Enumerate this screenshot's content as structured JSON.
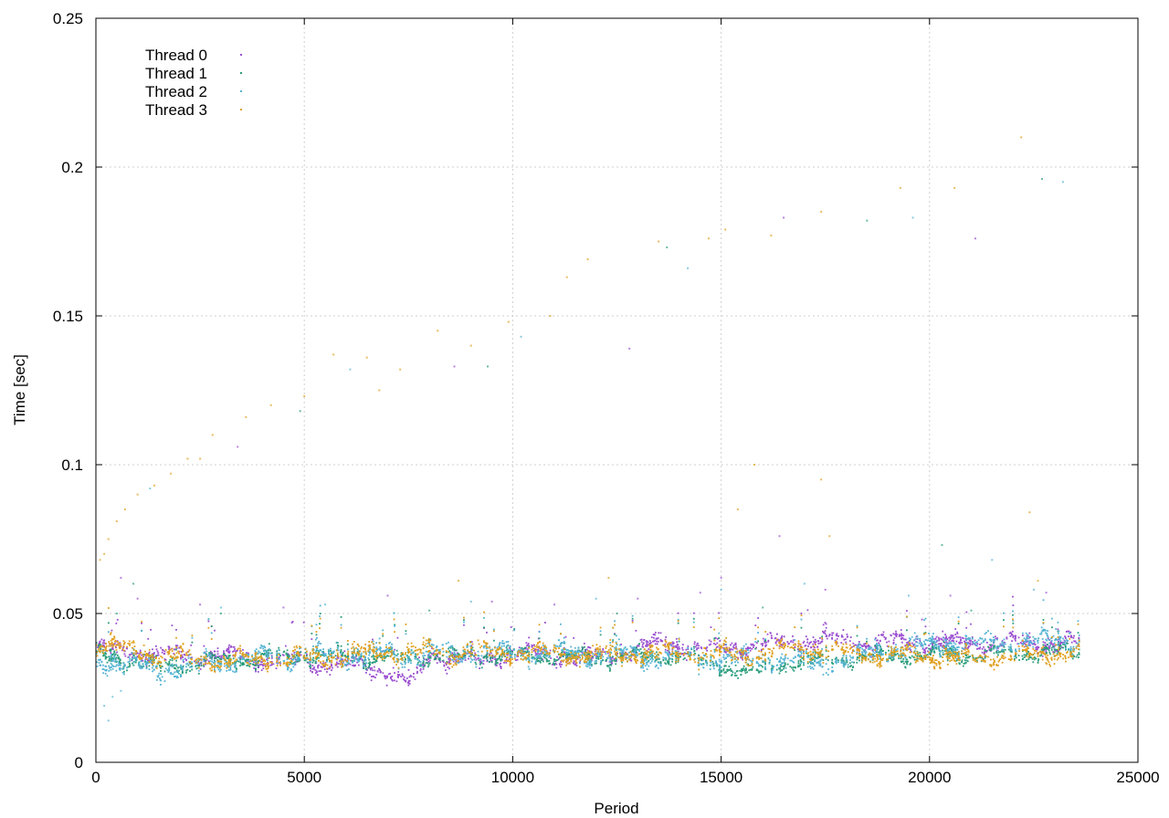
{
  "chart_data": {
    "type": "scatter",
    "xlabel": "Period",
    "ylabel": "Time [sec]",
    "xlim": [
      0,
      25000
    ],
    "ylim": [
      0,
      0.25
    ],
    "x_ticks": [
      0,
      5000,
      10000,
      15000,
      20000,
      25000
    ],
    "x_tick_labels": [
      "0",
      "5000",
      "10000",
      "15000",
      "20000",
      "25000"
    ],
    "y_ticks": [
      0,
      0.05,
      0.1,
      0.15,
      0.2,
      0.25
    ],
    "y_tick_labels": [
      "0",
      "0.05",
      "0.1",
      "0.15",
      "0.2",
      "0.25"
    ],
    "grid": true,
    "legend_position": "top-left",
    "x_range_of_data": [
      0,
      23600
    ],
    "series": [
      {
        "name": "Thread 0",
        "color": "#9b4fd0",
        "baseline": [
          [
            0,
            0.038
          ],
          [
            2000,
            0.036
          ],
          [
            4000,
            0.035
          ],
          [
            6000,
            0.033
          ],
          [
            6900,
            0.031
          ],
          [
            7300,
            0.028
          ],
          [
            7600,
            0.026
          ],
          [
            8000,
            0.036
          ],
          [
            9200,
            0.034
          ],
          [
            10000,
            0.037
          ],
          [
            12000,
            0.035
          ],
          [
            13500,
            0.04
          ],
          [
            15000,
            0.038
          ],
          [
            17000,
            0.041
          ],
          [
            20000,
            0.04
          ],
          [
            23600,
            0.04
          ]
        ],
        "spread": 0.0035,
        "outliers": [
          [
            1000,
            0.055
          ],
          [
            2500,
            0.053
          ],
          [
            4500,
            0.052
          ],
          [
            7000,
            0.056
          ],
          [
            9500,
            0.054
          ],
          [
            11000,
            0.053
          ],
          [
            13000,
            0.055
          ],
          [
            14500,
            0.057
          ],
          [
            15000,
            0.062
          ],
          [
            17500,
            0.058
          ],
          [
            20500,
            0.056
          ],
          [
            22800,
            0.057
          ]
        ]
      },
      {
        "name": "Thread 1",
        "color": "#2a9d7c",
        "baseline": [
          [
            0,
            0.037
          ],
          [
            1500,
            0.032
          ],
          [
            3000,
            0.034
          ],
          [
            5000,
            0.036
          ],
          [
            7000,
            0.035
          ],
          [
            10000,
            0.036
          ],
          [
            12000,
            0.035
          ],
          [
            14000,
            0.036
          ],
          [
            15800,
            0.03
          ],
          [
            16500,
            0.033
          ],
          [
            18000,
            0.035
          ],
          [
            20000,
            0.036
          ],
          [
            23600,
            0.037
          ]
        ],
        "spread": 0.003,
        "outliers": [
          [
            500,
            0.05
          ],
          [
            3000,
            0.05
          ],
          [
            8000,
            0.051
          ],
          [
            12500,
            0.05
          ],
          [
            16000,
            0.052
          ],
          [
            21000,
            0.051
          ]
        ]
      },
      {
        "name": "Thread 2",
        "color": "#56b4d4",
        "baseline": [
          [
            0,
            0.035
          ],
          [
            1500,
            0.031
          ],
          [
            3000,
            0.034
          ],
          [
            5000,
            0.036
          ],
          [
            7000,
            0.036
          ],
          [
            10000,
            0.037
          ],
          [
            13000,
            0.036
          ],
          [
            15000,
            0.035
          ],
          [
            16500,
            0.034
          ],
          [
            17500,
            0.033
          ],
          [
            19000,
            0.038
          ],
          [
            21000,
            0.04
          ],
          [
            23600,
            0.041
          ]
        ],
        "spread": 0.004,
        "outliers": [
          [
            200,
            0.019
          ],
          [
            300,
            0.014
          ],
          [
            400,
            0.022
          ],
          [
            600,
            0.024
          ],
          [
            3000,
            0.052
          ],
          [
            5500,
            0.053
          ],
          [
            9000,
            0.054
          ],
          [
            12000,
            0.055
          ],
          [
            15000,
            0.058
          ],
          [
            17000,
            0.06
          ],
          [
            19500,
            0.056
          ],
          [
            22500,
            0.058
          ]
        ]
      },
      {
        "name": "Thread 3",
        "color": "#e0a020",
        "baseline": [
          [
            0,
            0.04
          ],
          [
            1500,
            0.036
          ],
          [
            3000,
            0.034
          ],
          [
            5000,
            0.035
          ],
          [
            7000,
            0.037
          ],
          [
            10000,
            0.037
          ],
          [
            12000,
            0.036
          ],
          [
            14000,
            0.037
          ],
          [
            15500,
            0.036
          ],
          [
            17000,
            0.038
          ],
          [
            19000,
            0.036
          ],
          [
            21000,
            0.035
          ],
          [
            23600,
            0.037
          ]
        ],
        "spread": 0.0035,
        "outliers": [
          [
            100,
            0.068
          ],
          [
            200,
            0.07
          ],
          [
            300,
            0.075
          ],
          [
            500,
            0.081
          ],
          [
            700,
            0.085
          ],
          [
            1000,
            0.09
          ],
          [
            1400,
            0.093
          ],
          [
            1800,
            0.097
          ],
          [
            2200,
            0.102
          ],
          [
            2800,
            0.11
          ],
          [
            3600,
            0.116
          ],
          [
            4200,
            0.12
          ],
          [
            5000,
            0.123
          ],
          [
            5700,
            0.137
          ],
          [
            6500,
            0.136
          ],
          [
            7300,
            0.132
          ],
          [
            8200,
            0.145
          ],
          [
            9000,
            0.14
          ],
          [
            9900,
            0.148
          ],
          [
            10900,
            0.15
          ],
          [
            11800,
            0.169
          ],
          [
            13500,
            0.175
          ],
          [
            14700,
            0.176
          ],
          [
            16200,
            0.177
          ],
          [
            17400,
            0.185
          ],
          [
            19300,
            0.193
          ],
          [
            22200,
            0.21
          ],
          [
            15800,
            0.1
          ],
          [
            17400,
            0.095
          ],
          [
            8700,
            0.061
          ],
          [
            12300,
            0.062
          ],
          [
            17600,
            0.076
          ],
          [
            22600,
            0.061
          ]
        ]
      }
    ],
    "extra_outliers": [
      [
        600,
        0.062
      ],
      [
        900,
        0.06
      ],
      [
        1300,
        0.092
      ],
      [
        2500,
        0.102
      ],
      [
        3400,
        0.106
      ],
      [
        4900,
        0.118
      ],
      [
        6100,
        0.132
      ],
      [
        6800,
        0.125
      ],
      [
        8600,
        0.133
      ],
      [
        9400,
        0.133
      ],
      [
        10200,
        0.143
      ],
      [
        11300,
        0.163
      ],
      [
        12800,
        0.139
      ],
      [
        13700,
        0.173
      ],
      [
        14200,
        0.166
      ],
      [
        15100,
        0.179
      ],
      [
        16500,
        0.183
      ],
      [
        18500,
        0.182
      ],
      [
        19600,
        0.183
      ],
      [
        20600,
        0.193
      ],
      [
        21100,
        0.176
      ],
      [
        22700,
        0.196
      ],
      [
        23200,
        0.195
      ],
      [
        15400,
        0.085
      ],
      [
        16400,
        0.076
      ],
      [
        20300,
        0.073
      ],
      [
        21500,
        0.068
      ],
      [
        22400,
        0.084
      ]
    ]
  }
}
